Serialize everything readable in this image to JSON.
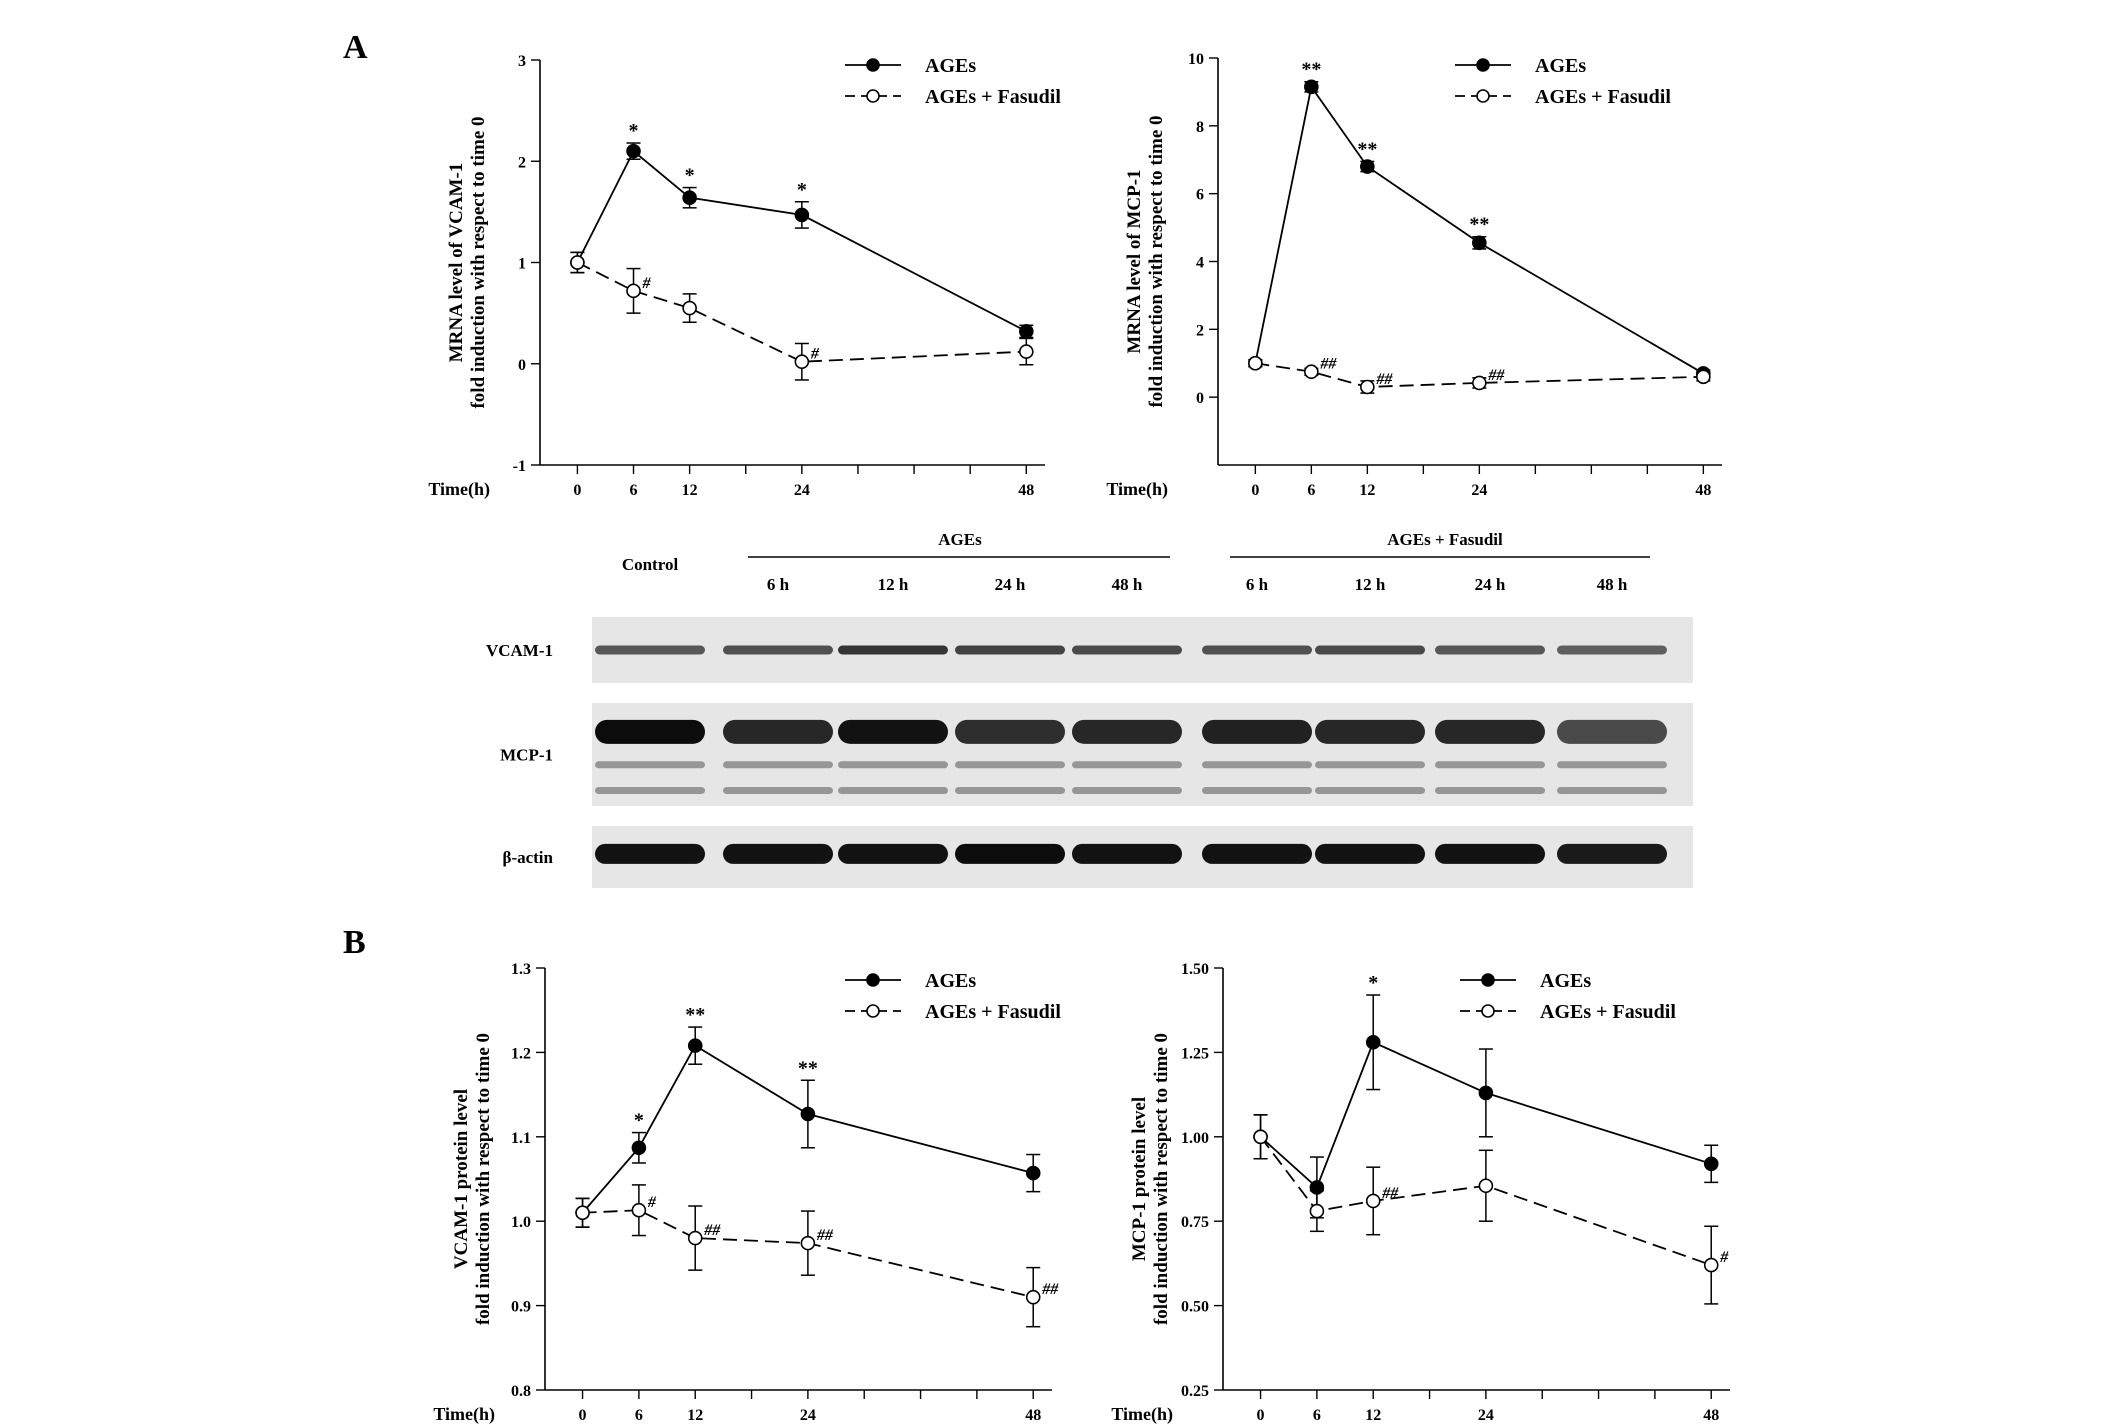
{
  "panel_labels": {
    "a": "A",
    "b": "B"
  },
  "colors": {
    "ink": "#000000",
    "blot_bg": "#e6e6e6",
    "hollow": "#ffffff"
  },
  "blot": {
    "control_label": "Control",
    "group_ages": "AGEs",
    "group_fasudil": "AGEs + Fasudil",
    "lane_labels": [
      "6 h",
      "12 h",
      "24 h",
      "48 h",
      "6 h",
      "12 h",
      "24 h",
      "48 h"
    ],
    "rows": [
      "VCAM-1",
      "MCP-1",
      "β-actin"
    ],
    "lane_intensity": {
      "VCAM-1": [
        0.45,
        0.5,
        0.7,
        0.6,
        0.55,
        0.5,
        0.55,
        0.45,
        0.4
      ],
      "MCP-1": [
        1.0,
        0.8,
        0.95,
        0.75,
        0.8,
        0.85,
        0.8,
        0.8,
        0.55
      ],
      "β-actin": [
        0.95,
        0.95,
        0.95,
        1.0,
        0.95,
        0.95,
        0.95,
        0.95,
        0.9
      ]
    }
  },
  "chart_data": [
    {
      "id": "a1",
      "type": "line",
      "ylabel": [
        "MRNA level of VCAM-1",
        "fold induction with respect to time 0"
      ],
      "xlabel": "Time(h)",
      "x_ticks": [
        0,
        6,
        12,
        24,
        48
      ],
      "x_minor": [
        18,
        30,
        36,
        42
      ],
      "xlim": [
        -4,
        50
      ],
      "y_ticks": [
        -1,
        0,
        1,
        2,
        3
      ],
      "y_tick_labels": [
        "-1",
        "0",
        "1",
        "2",
        "3"
      ],
      "ylim": [
        -1,
        3
      ],
      "legend_position": "top-right",
      "series": [
        {
          "name": "AGEs",
          "marker": "filled",
          "line": "solid",
          "x": [
            0,
            6,
            12,
            24,
            48
          ],
          "y": [
            1.0,
            2.1,
            1.64,
            1.47,
            0.32
          ],
          "err": [
            0.1,
            0.08,
            0.1,
            0.13,
            0.06
          ],
          "annotations": [
            "",
            "*",
            "*",
            "*",
            ""
          ]
        },
        {
          "name": "AGEs + Fasudil",
          "marker": "hollow",
          "line": "dashed",
          "x": [
            0,
            6,
            12,
            24,
            48
          ],
          "y": [
            1.0,
            0.72,
            0.55,
            0.02,
            0.12
          ],
          "err": [
            0.1,
            0.22,
            0.14,
            0.18,
            0.13
          ],
          "annotations": [
            "",
            "#",
            "",
            "#",
            ""
          ]
        }
      ]
    },
    {
      "id": "a2",
      "type": "line",
      "ylabel": [
        "MRNA level of MCP-1",
        "fold induction with respect to time 0"
      ],
      "xlabel": "Time(h)",
      "x_ticks": [
        0,
        6,
        12,
        24,
        48
      ],
      "x_minor": [
        18,
        30,
        36,
        42
      ],
      "xlim": [
        -4,
        50
      ],
      "y_ticks": [
        0,
        2,
        4,
        6,
        8,
        10
      ],
      "y_tick_labels": [
        "0",
        "2",
        "4",
        "6",
        "8",
        "10"
      ],
      "ylim": [
        -2,
        10
      ],
      "legend_position": "top-right",
      "series": [
        {
          "name": "AGEs",
          "marker": "filled",
          "line": "solid",
          "x": [
            0,
            6,
            12,
            24,
            48
          ],
          "y": [
            1.0,
            9.15,
            6.8,
            4.55,
            0.7
          ],
          "err": [
            0.1,
            0.15,
            0.15,
            0.18,
            0.1
          ],
          "annotations": [
            "",
            "**",
            "**",
            "**",
            ""
          ]
        },
        {
          "name": "AGEs + Fasudil",
          "marker": "hollow",
          "line": "dashed",
          "x": [
            0,
            6,
            12,
            24,
            48
          ],
          "y": [
            1.0,
            0.75,
            0.3,
            0.42,
            0.6
          ],
          "err": [
            0.1,
            0.1,
            0.18,
            0.15,
            0.12
          ],
          "annotations": [
            "",
            "##",
            "##",
            "##",
            ""
          ]
        }
      ]
    },
    {
      "id": "b1",
      "type": "line",
      "ylabel": [
        "VCAM-1 protein level",
        "fold induction with respect to time 0"
      ],
      "xlabel": "Time(h)",
      "x_ticks": [
        0,
        6,
        12,
        24,
        48
      ],
      "x_minor": [
        18,
        30,
        36,
        42
      ],
      "xlim": [
        -4,
        50
      ],
      "y_ticks": [
        0.8,
        0.9,
        1.0,
        1.1,
        1.2,
        1.3
      ],
      "y_tick_labels": [
        "0.8",
        "0.9",
        "1.0",
        "1.1",
        "1.2",
        "1.3"
      ],
      "ylim": [
        0.8,
        1.3
      ],
      "legend_position": "top-right",
      "series": [
        {
          "name": "AGEs",
          "marker": "filled",
          "line": "solid",
          "x": [
            0,
            6,
            12,
            24,
            48
          ],
          "y": [
            1.01,
            1.087,
            1.208,
            1.127,
            1.057
          ],
          "err": [
            0.017,
            0.018,
            0.022,
            0.04,
            0.022
          ],
          "annotations": [
            "",
            "*",
            "**",
            "**",
            ""
          ]
        },
        {
          "name": "AGEs + Fasudil",
          "marker": "hollow",
          "line": "dashed",
          "x": [
            0,
            6,
            12,
            24,
            48
          ],
          "y": [
            1.01,
            1.013,
            0.98,
            0.974,
            0.91
          ],
          "err": [
            0.017,
            0.03,
            0.038,
            0.038,
            0.035
          ],
          "annotations": [
            "",
            "#",
            "##",
            "##",
            "##"
          ]
        }
      ]
    },
    {
      "id": "b2",
      "type": "line",
      "ylabel": [
        "MCP-1 protein level",
        "fold induction with respect to time 0"
      ],
      "xlabel": "Time(h)",
      "x_ticks": [
        0,
        6,
        12,
        24,
        48
      ],
      "x_minor": [
        18,
        30,
        36,
        42
      ],
      "xlim": [
        -4,
        50
      ],
      "y_ticks": [
        0.25,
        0.5,
        0.75,
        1.0,
        1.25,
        1.5
      ],
      "y_tick_labels": [
        "0.25",
        "0.50",
        "0.75",
        "1.00",
        "1.25",
        "1.50"
      ],
      "ylim": [
        0.25,
        1.5
      ],
      "legend_position": "top-right",
      "series": [
        {
          "name": "AGEs",
          "marker": "filled",
          "line": "solid",
          "x": [
            0,
            6,
            12,
            24,
            48
          ],
          "y": [
            1.0,
            0.85,
            1.28,
            1.13,
            0.92
          ],
          "err": [
            0.065,
            0.09,
            0.14,
            0.13,
            0.055
          ],
          "annotations": [
            "",
            "",
            "*",
            "",
            ""
          ]
        },
        {
          "name": "AGEs + Fasudil",
          "marker": "hollow",
          "line": "dashed",
          "x": [
            0,
            6,
            12,
            24,
            48
          ],
          "y": [
            1.0,
            0.78,
            0.81,
            0.855,
            0.62
          ],
          "err": [
            0.065,
            0.06,
            0.1,
            0.105,
            0.115
          ],
          "annotations": [
            "",
            "",
            "##",
            "",
            "#"
          ]
        }
      ]
    }
  ]
}
